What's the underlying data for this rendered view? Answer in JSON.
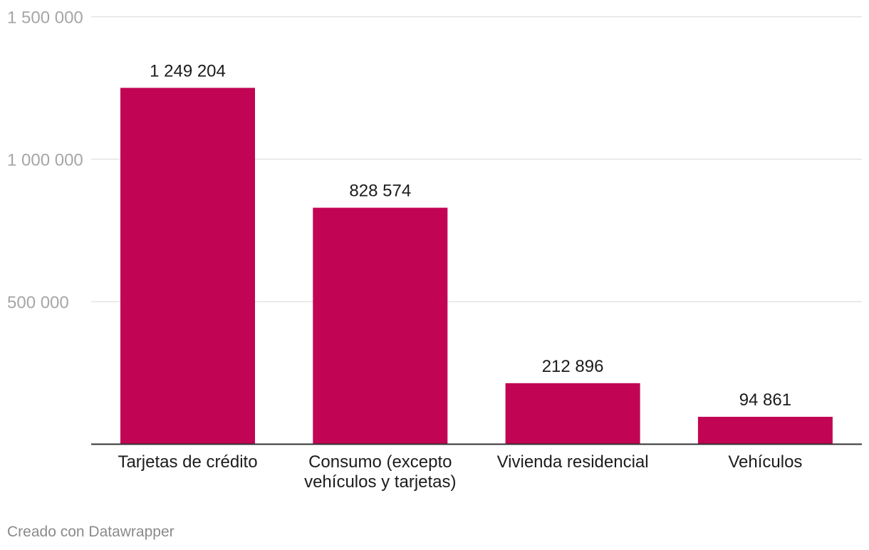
{
  "chart_data": {
    "type": "bar",
    "categories": [
      [
        "Tarjetas de crédito"
      ],
      [
        "Consumo (excepto",
        "vehículos y tarjetas)"
      ],
      [
        "Vivienda residencial"
      ],
      [
        "Vehículos"
      ]
    ],
    "values": [
      1249204,
      828574,
      212896,
      94861
    ],
    "value_labels": [
      "1 249 204",
      "828 574",
      "212 896",
      "94 861"
    ],
    "ylim": [
      0,
      1500000
    ],
    "yticks": [
      {
        "value": 500000,
        "label": "500 000"
      },
      {
        "value": 1000000,
        "label": "1 000 000"
      },
      {
        "value": 1500000,
        "label": "1 500 000"
      }
    ],
    "grid": true,
    "colors": {
      "bar": "#c10454",
      "grid": "#e3e3e3",
      "axis": "#333333"
    }
  },
  "footer": {
    "credit": "Creado con Datawrapper"
  }
}
